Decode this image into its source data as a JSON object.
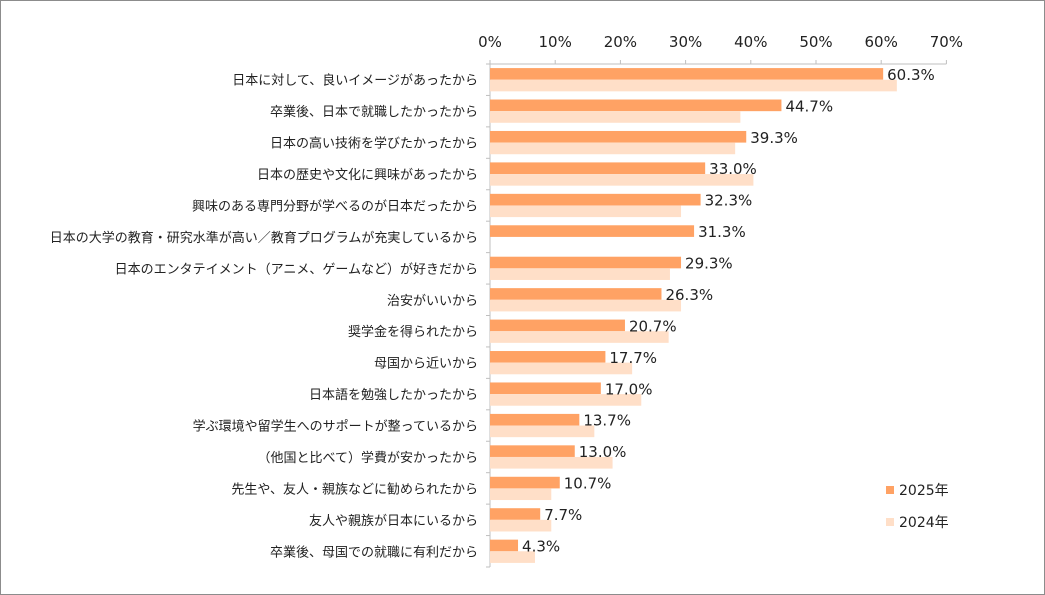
{
  "chart_data": {
    "type": "bar",
    "orientation": "horizontal",
    "title": "",
    "xlabel": "",
    "ylabel": "",
    "xlim": [
      0,
      70
    ],
    "x_ticks": [
      "0%",
      "10%",
      "20%",
      "30%",
      "40%",
      "50%",
      "60%",
      "70%"
    ],
    "x_tick_values": [
      0,
      10,
      20,
      30,
      40,
      50,
      60,
      70
    ],
    "grid": false,
    "legend_position": "bottom-right",
    "categories": [
      "日本に対して、良いイメージがあったから",
      "卒業後、日本で就職したかったから",
      "日本の高い技術を学びたかったから",
      "日本の歴史や文化に興味があったから",
      "興味のある専門分野が学べるのが日本だったから",
      "日本の大学の教育・研究水準が高い／教育プログラムが充実しているから",
      "日本のエンタテイメント（アニメ、ゲームなど）が好きだから",
      "治安がいいから",
      "奨学金を得られたから",
      "母国から近いから",
      "日本語を勉強したかったから",
      "学ぶ環境や留学生へのサポートが整っているから",
      "（他国と比べて）学費が安かったから",
      "先生や、友人・親族などに勧められたから",
      "友人や親族が日本にいるから",
      "卒業後、母国での就職に有利だから"
    ],
    "series": [
      {
        "name": "2025年",
        "color": "#FFA264",
        "values": [
          60.3,
          44.7,
          39.3,
          33.0,
          32.3,
          31.3,
          29.3,
          26.3,
          20.7,
          17.7,
          17.0,
          13.7,
          13.0,
          10.7,
          7.7,
          4.3
        ],
        "labels": [
          "60.3%",
          "44.7%",
          "39.3%",
          "33.0%",
          "32.3%",
          "31.3%",
          "29.3%",
          "26.3%",
          "20.7%",
          "17.7%",
          "17.0%",
          "13.7%",
          "13.0%",
          "10.7%",
          "7.7%",
          "4.3%"
        ]
      },
      {
        "name": "2024年",
        "color": "#FFDFC8",
        "values": [
          62.4,
          38.4,
          37.6,
          40.4,
          29.3,
          null,
          27.6,
          29.3,
          27.4,
          21.8,
          23.2,
          16.0,
          18.8,
          9.4,
          9.4,
          6.9
        ]
      }
    ]
  }
}
